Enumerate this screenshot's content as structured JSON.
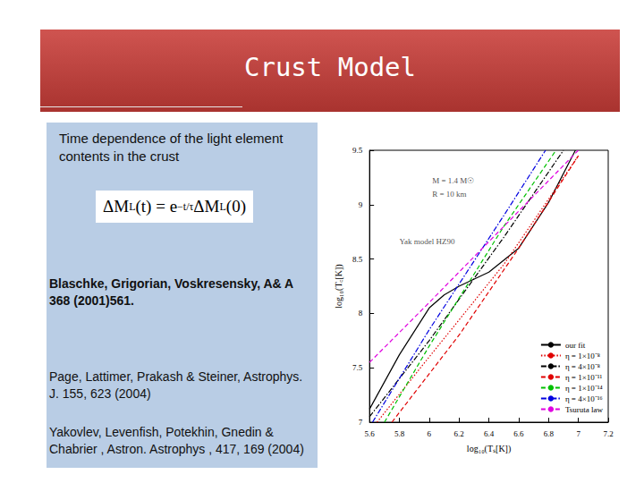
{
  "slide": {
    "title": "Crust Model",
    "text": "Time dependence of the  light element contents  in the crust",
    "formula": [
      {
        "t": "ΔM"
      },
      {
        "sub": "L"
      },
      {
        "t": "(t) = e"
      },
      {
        "sup": "−t/τ"
      },
      {
        "t": "ΔM"
      },
      {
        "sub": "L"
      },
      {
        "t": "(0)"
      }
    ],
    "references": [
      "Blaschke,  Grigorian, Voskresensky, A& A 368 (2001)561.",
      "Page, Lattimer, Prakash & Steiner, Astrophys. J. 155, 623 (2004)",
      "Yakovlev, Levenfish, Potekhin, Gnedin & Chabrier , Astron. Astrophys , 417, 169 (2004)"
    ]
  },
  "chart_data": {
    "type": "line",
    "x_label": "log₁₀(Tₛ[K])",
    "y_label": "log₁₀(T꜀[K])",
    "xlim": [
      5.6,
      7.2
    ],
    "xticks": [
      5.6,
      5.8,
      6,
      6.2,
      6.4,
      6.6,
      6.8,
      7,
      7.2
    ],
    "ylim": [
      7,
      9.5
    ],
    "yticks": [
      7,
      7.5,
      8,
      8.5,
      9,
      9.5
    ],
    "grid": false,
    "legend": "lower right",
    "annotations": [
      {
        "text": "M = 1.4 M☉",
        "x": 6.02,
        "y": 9.22
      },
      {
        "text": "R = 10 km",
        "x": 6.02,
        "y": 9.1
      },
      {
        "text": "Yak model HZ90",
        "x": 5.8,
        "y": 8.66
      }
    ],
    "series": [
      {
        "name": "our fit",
        "color": "#000000",
        "line_style": "solid",
        "x": [
          5.6,
          5.8,
          6.0,
          6.1,
          6.2,
          6.4,
          6.6,
          6.8,
          6.98
        ],
        "values": [
          7.12,
          7.62,
          8.05,
          8.17,
          8.25,
          8.38,
          8.6,
          9.02,
          9.5
        ]
      },
      {
        "name": "η = 1×10⁻⁸",
        "color": "#e00000",
        "line_style": "dotted",
        "x": [
          5.65,
          6.0,
          6.5,
          7.0
        ],
        "values": [
          7.0,
          7.6,
          8.45,
          9.45
        ]
      },
      {
        "name": "η = 4×10⁻⁸",
        "color": "#000000",
        "line_style": "dashdot",
        "x": [
          5.6,
          6.0,
          6.5,
          6.9
        ],
        "values": [
          7.05,
          7.75,
          8.7,
          9.5
        ]
      },
      {
        "name": "η = 1×10⁻¹¹",
        "color": "#e00000",
        "line_style": "dashed",
        "x": [
          5.75,
          6.2,
          6.6,
          7.0
        ],
        "values": [
          7.0,
          7.8,
          8.6,
          9.45
        ]
      },
      {
        "name": "η = 1×10⁻¹⁴",
        "color": "#00c000",
        "line_style": "dashed",
        "x": [
          5.7,
          6.0,
          6.5,
          6.85
        ],
        "values": [
          7.0,
          7.7,
          8.8,
          9.5
        ]
      },
      {
        "name": "η = 4×10⁻¹⁶",
        "color": "#0000e0",
        "line_style": "dashdot",
        "x": [
          5.62,
          6.0,
          6.5,
          6.78
        ],
        "values": [
          7.0,
          7.85,
          8.9,
          9.5
        ]
      },
      {
        "name": "Tsuruta law",
        "color": "#e000e0",
        "line_style": "dashed",
        "x": [
          5.6,
          6.0,
          6.5,
          7.0
        ],
        "values": [
          7.55,
          8.1,
          8.8,
          9.5
        ]
      }
    ]
  }
}
